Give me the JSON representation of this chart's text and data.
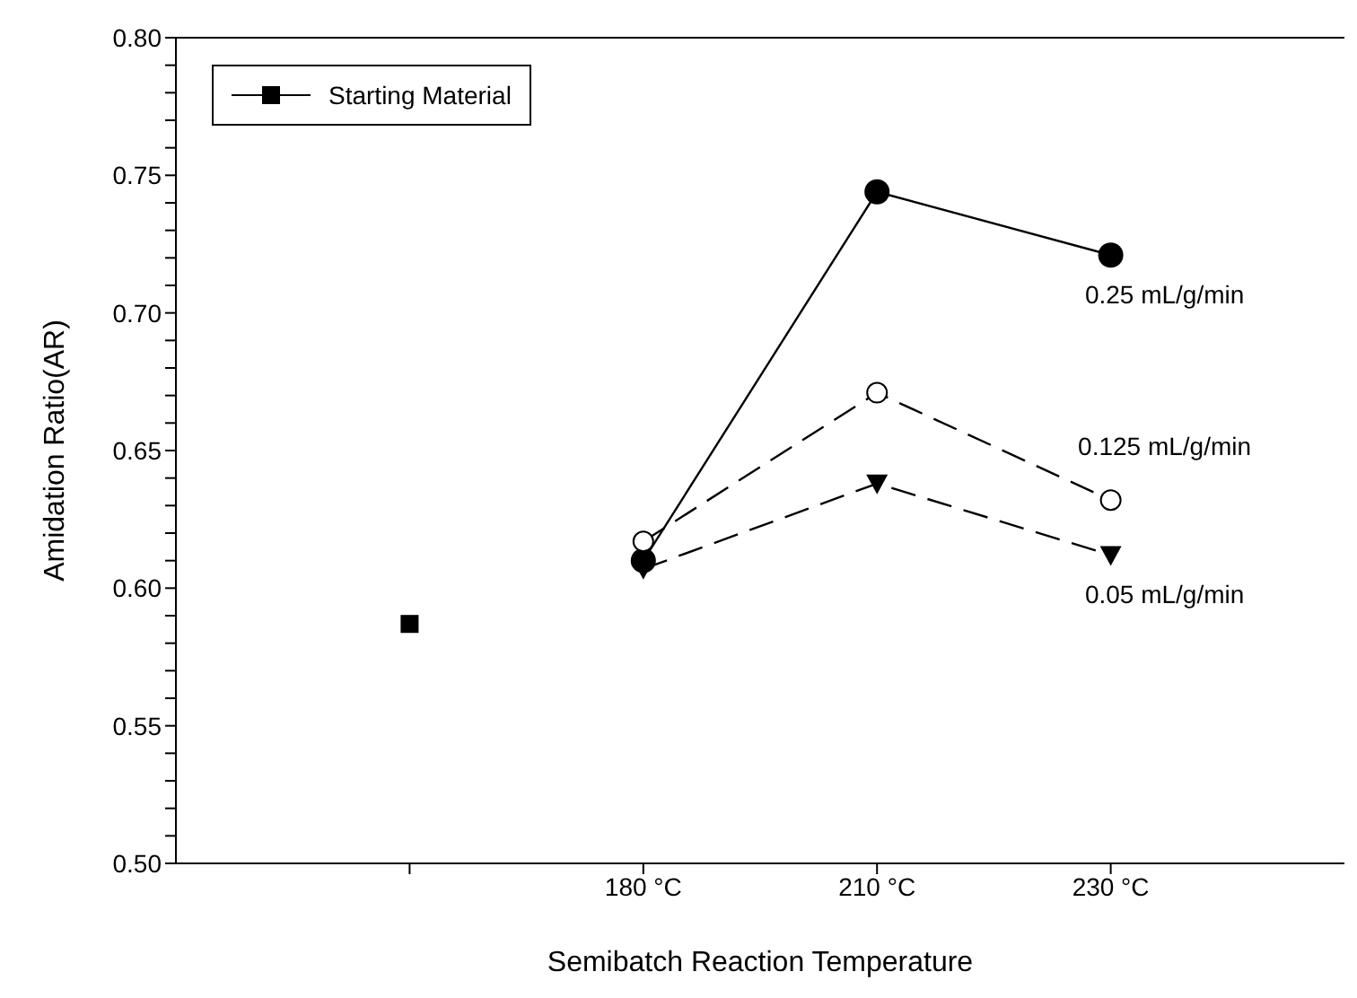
{
  "chart_data": {
    "type": "line",
    "xlabel": "Semibatch Reaction Temperature",
    "ylabel": "Amidation  Ratio(AR)",
    "categories": [
      null,
      "180 °C",
      "210 °C",
      "230 °C"
    ],
    "series": [
      {
        "name": "Starting Material",
        "color": "#000000",
        "values": [
          0.587,
          null,
          null,
          null
        ],
        "marker": "square",
        "line_style": "solid"
      },
      {
        "color": "#000000",
        "values": [
          null,
          0.61,
          0.744,
          0.721
        ],
        "marker": "circle",
        "line_style": "solid"
      },
      {
        "color": "#000000",
        "values": [
          null,
          0.617,
          0.671,
          0.632
        ],
        "marker": "circle-open",
        "line_style": "dashed"
      },
      {
        "color": "#000000",
        "values": [
          null,
          0.607,
          0.638,
          0.612
        ],
        "marker": "triangle",
        "line_style": "dashed"
      }
    ],
    "ylim": [
      0.5,
      0.8
    ],
    "yticks": [
      {
        "value": 0.5,
        "label": "0.50"
      },
      {
        "value": 0.51,
        "label": null
      },
      {
        "value": 0.52,
        "label": null
      },
      {
        "value": 0.53,
        "label": null
      },
      {
        "value": 0.54,
        "label": null
      },
      {
        "value": 0.55,
        "label": "0.55"
      },
      {
        "value": 0.56,
        "label": null
      },
      {
        "value": 0.57,
        "label": null
      },
      {
        "value": 0.58,
        "label": null
      },
      {
        "value": 0.59,
        "label": null
      },
      {
        "value": 0.6,
        "label": "0.60"
      },
      {
        "value": 0.61,
        "label": null
      },
      {
        "value": 0.62,
        "label": null
      },
      {
        "value": 0.63,
        "label": null
      },
      {
        "value": 0.64,
        "label": null
      },
      {
        "value": 0.65,
        "label": "0.65"
      },
      {
        "value": 0.66,
        "label": null
      },
      {
        "value": 0.67,
        "label": null
      },
      {
        "value": 0.68,
        "label": null
      },
      {
        "value": 0.69,
        "label": null
      },
      {
        "value": 0.7,
        "label": "0.70"
      },
      {
        "value": 0.71,
        "label": null
      },
      {
        "value": 0.72,
        "label": null
      },
      {
        "value": 0.73,
        "label": null
      },
      {
        "value": 0.74,
        "label": null
      },
      {
        "value": 0.75,
        "label": "0.75"
      },
      {
        "value": 0.76,
        "label": null
      },
      {
        "value": 0.77,
        "label": null
      },
      {
        "value": 0.78,
        "label": null
      },
      {
        "value": 0.79,
        "label": null
      },
      {
        "value": 0.8,
        "label": "0.80"
      }
    ],
    "annotations": [
      {
        "text": "0.25 mL/g/min",
        "x": "230 °C",
        "y": 0.721
      },
      {
        "text": "0.125 mL/g/min",
        "x": "230 °C",
        "y": 0.632
      },
      {
        "text": "0.05 mL/g/min",
        "x": "230 °C",
        "y": 0.612
      }
    ],
    "legend": "top left",
    "grid": false
  }
}
